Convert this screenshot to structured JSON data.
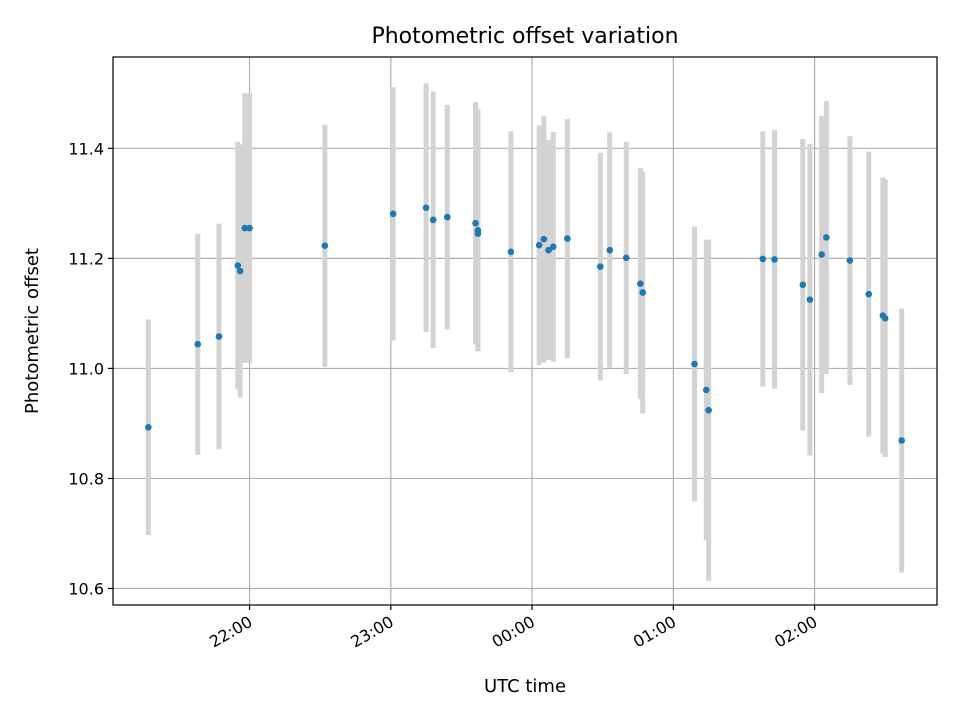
{
  "chart_data": {
    "type": "scatter",
    "title": "Photometric offset variation",
    "xlabel": "UTC time",
    "ylabel": "Photometric offset",
    "x_is_time": true,
    "x_tick_values": [
      "22:00",
      "23:00",
      "00:00",
      "01:00",
      "02:00"
    ],
    "y_tick_labels": [
      "10.6",
      "10.8",
      "11.0",
      "11.2",
      "11.4"
    ],
    "y_ticks": [
      10.6,
      10.8,
      11.0,
      11.2,
      11.4
    ],
    "ylim": [
      10.57,
      11.566
    ],
    "xlim": [
      "21:02",
      "02:52"
    ],
    "grid": true,
    "colors": {
      "points": "#1f77b4",
      "errorbars": "#d3d3d3",
      "grid": "#b0b0b0"
    },
    "points": [
      {
        "t": "21:17",
        "y": 10.893,
        "err": 0.196
      },
      {
        "t": "21:38",
        "y": 11.044,
        "err": 0.201
      },
      {
        "t": "21:47",
        "y": 11.058,
        "err": 0.205
      },
      {
        "t": "21:55",
        "y": 11.187,
        "err": 0.225
      },
      {
        "t": "21:56",
        "y": 11.177,
        "err": 0.23
      },
      {
        "t": "21:58",
        "y": 11.255,
        "err": 0.245
      },
      {
        "t": "22:00",
        "y": 11.255,
        "err": 0.245
      },
      {
        "t": "22:32",
        "y": 11.223,
        "err": 0.22
      },
      {
        "t": "23:01",
        "y": 11.281,
        "err": 0.23
      },
      {
        "t": "23:15",
        "y": 11.292,
        "err": 0.226
      },
      {
        "t": "23:18",
        "y": 11.27,
        "err": 0.233
      },
      {
        "t": "23:24",
        "y": 11.275,
        "err": 0.204
      },
      {
        "t": "23:36",
        "y": 11.264,
        "err": 0.22
      },
      {
        "t": "23:37",
        "y": 11.245,
        "err": 0.213
      },
      {
        "t": "23:37",
        "y": 11.251,
        "err": 0.22
      },
      {
        "t": "23:51",
        "y": 11.212,
        "err": 0.219
      },
      {
        "t": "00:03",
        "y": 11.224,
        "err": 0.218
      },
      {
        "t": "00:05",
        "y": 11.235,
        "err": 0.224
      },
      {
        "t": "00:07",
        "y": 11.215,
        "err": 0.2
      },
      {
        "t": "00:09",
        "y": 11.221,
        "err": 0.209
      },
      {
        "t": "00:15",
        "y": 11.236,
        "err": 0.217
      },
      {
        "t": "00:29",
        "y": 11.185,
        "err": 0.207
      },
      {
        "t": "00:33",
        "y": 11.215,
        "err": 0.214
      },
      {
        "t": "00:40",
        "y": 11.201,
        "err": 0.211
      },
      {
        "t": "00:46",
        "y": 11.154,
        "err": 0.21
      },
      {
        "t": "00:47",
        "y": 11.138,
        "err": 0.22
      },
      {
        "t": "01:09",
        "y": 11.008,
        "err": 0.25
      },
      {
        "t": "01:14",
        "y": 10.961,
        "err": 0.273
      },
      {
        "t": "01:15",
        "y": 10.924,
        "err": 0.31
      },
      {
        "t": "01:38",
        "y": 11.199,
        "err": 0.232
      },
      {
        "t": "01:43",
        "y": 11.198,
        "err": 0.235
      },
      {
        "t": "01:55",
        "y": 11.152,
        "err": 0.265
      },
      {
        "t": "01:58",
        "y": 11.125,
        "err": 0.283
      },
      {
        "t": "02:03",
        "y": 11.207,
        "err": 0.252
      },
      {
        "t": "02:05",
        "y": 11.238,
        "err": 0.248
      },
      {
        "t": "02:15",
        "y": 11.196,
        "err": 0.226
      },
      {
        "t": "02:23",
        "y": 11.135,
        "err": 0.259
      },
      {
        "t": "02:29",
        "y": 11.096,
        "err": 0.251
      },
      {
        "t": "02:30",
        "y": 11.091,
        "err": 0.252
      },
      {
        "t": "02:37",
        "y": 10.869,
        "err": 0.24
      }
    ]
  }
}
